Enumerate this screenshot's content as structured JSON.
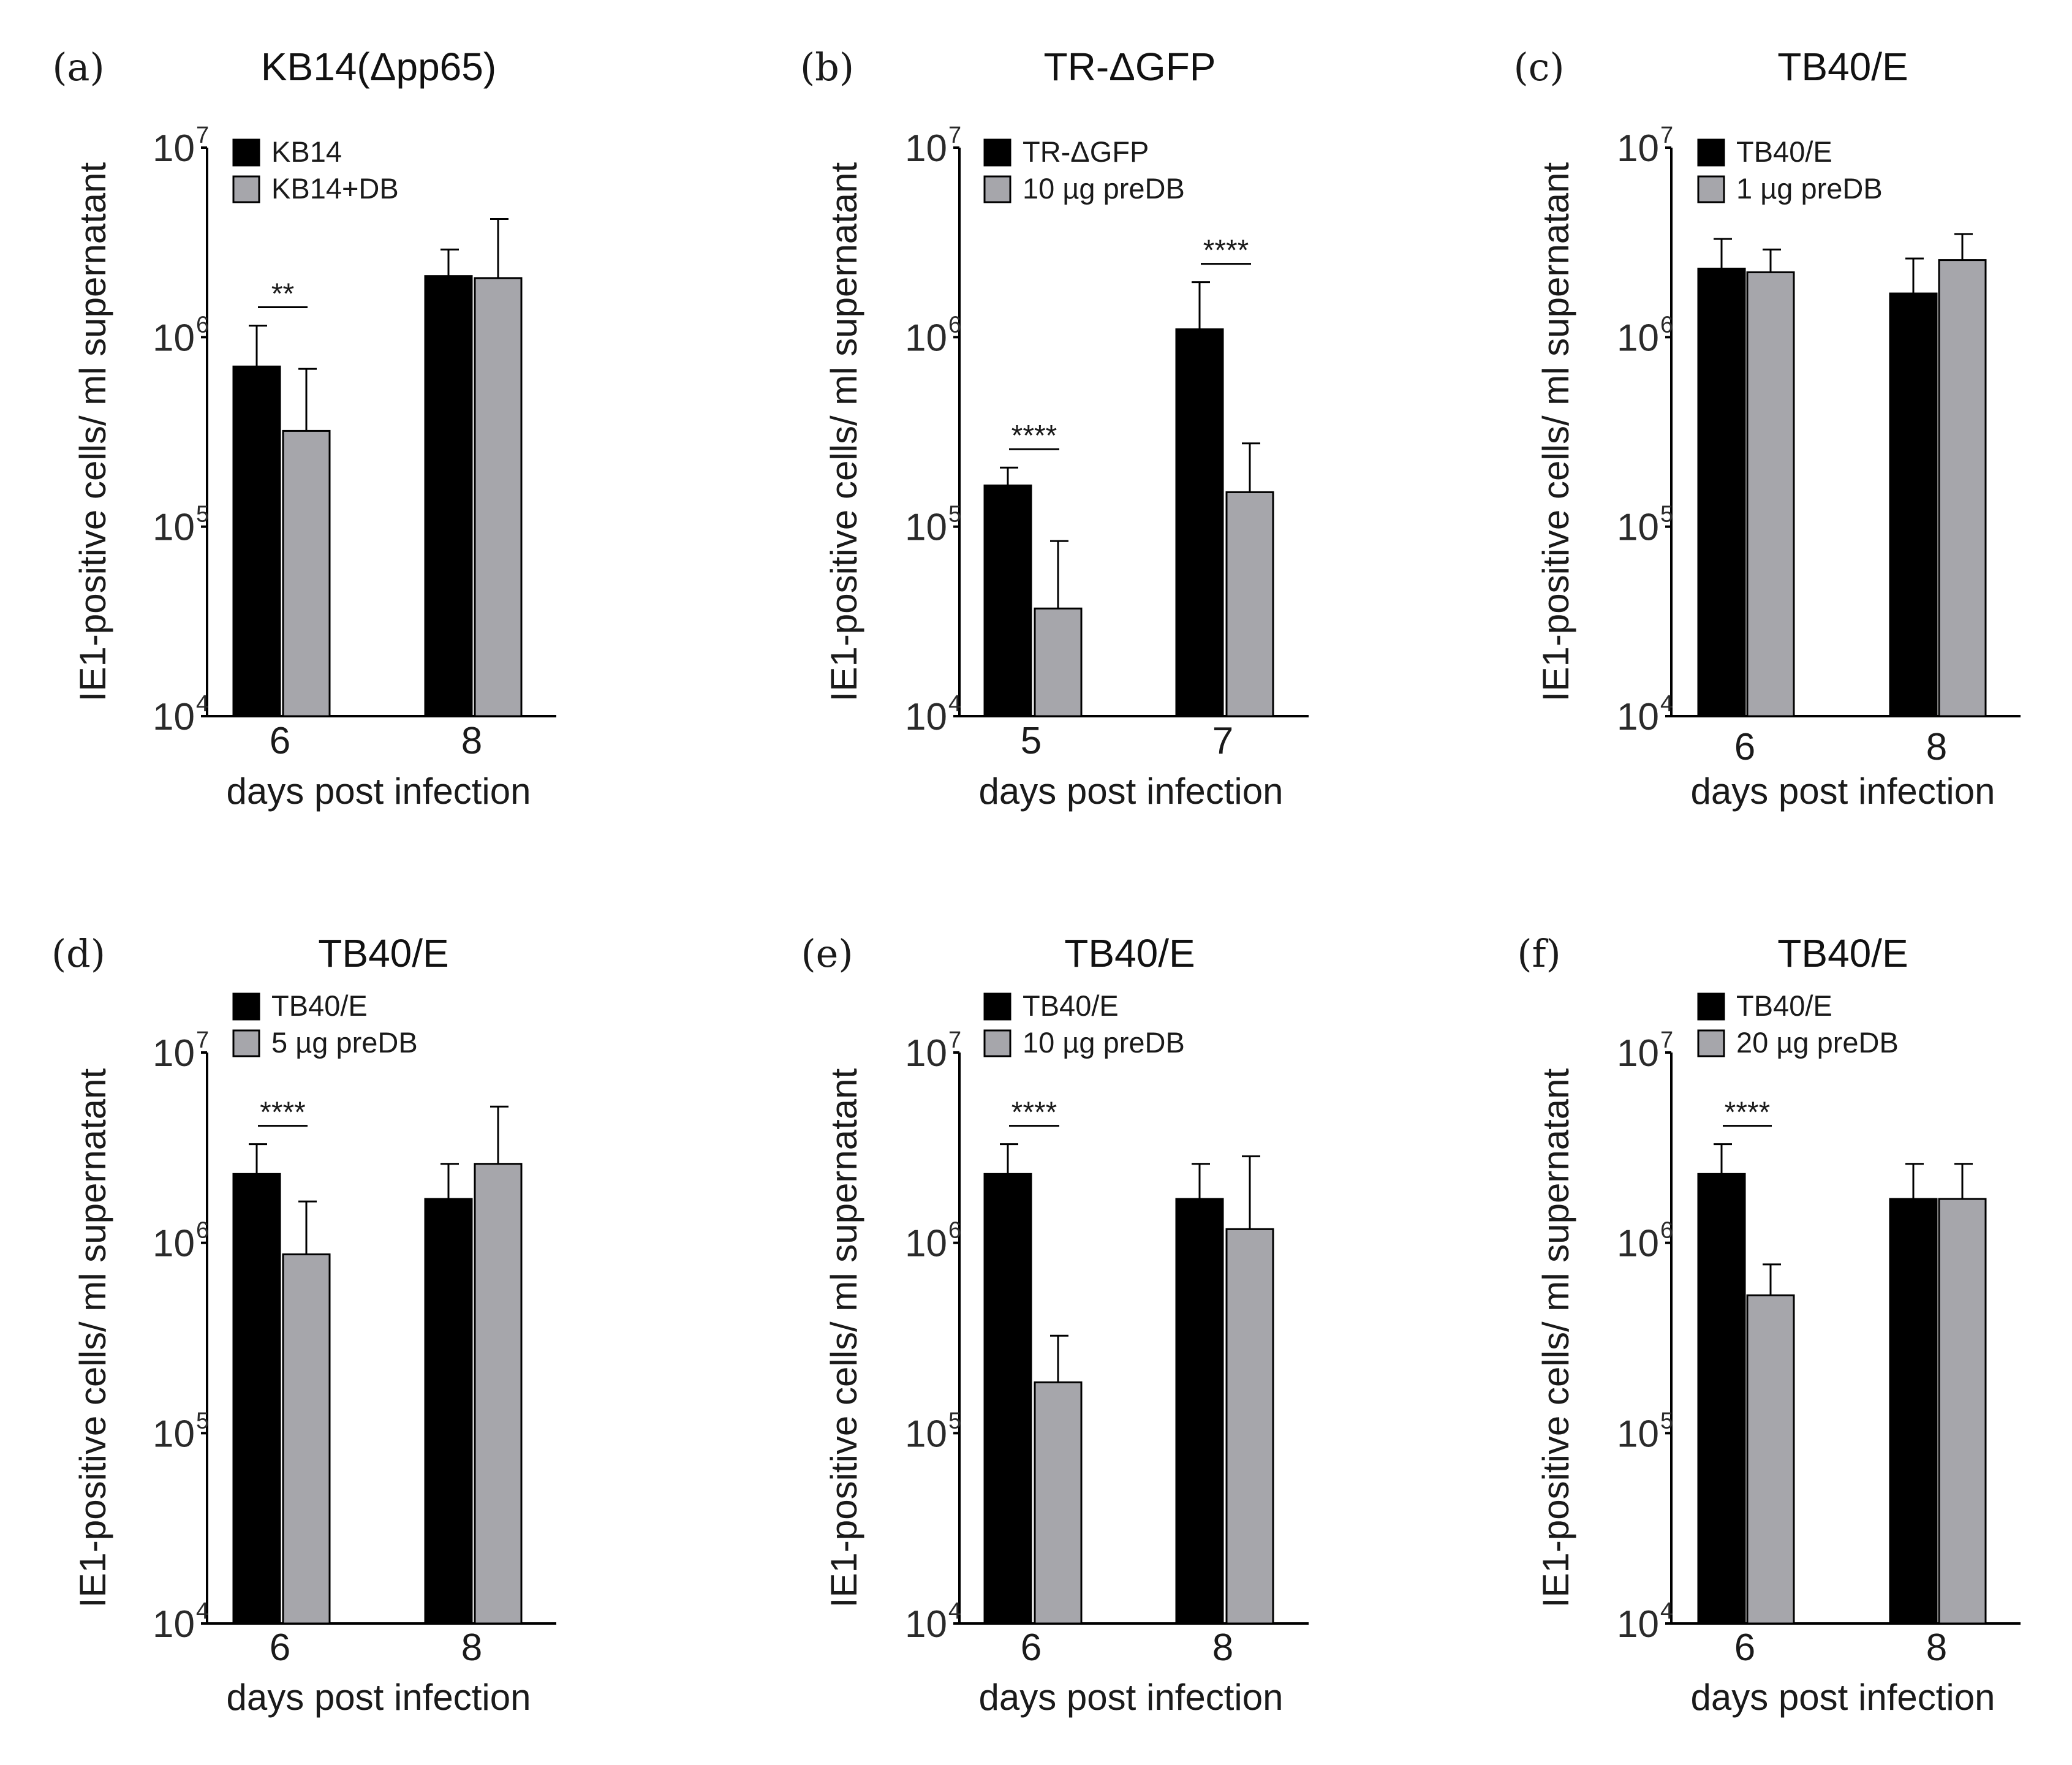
{
  "figure": {
    "x_axis_title": "days post infection"
  },
  "colors": {
    "series1": "#000000",
    "series2": "#a6a6ab",
    "axis": "#000000"
  },
  "chart_data": [
    {
      "type": "bar",
      "panel": "(a)",
      "title": "KB14(Δpp65)",
      "xlabel": "days post infection",
      "ylabel": "IE1-positive cells/ ml supernatant",
      "yscale": "log",
      "ylim": [
        10000,
        10000000
      ],
      "yticks": [
        {
          "base": "10",
          "exp": "4"
        },
        {
          "base": "10",
          "exp": "5"
        },
        {
          "base": "10",
          "exp": "6"
        },
        {
          "base": "10",
          "exp": "7"
        }
      ],
      "categories": [
        "6",
        "8"
      ],
      "series": [
        {
          "name": "KB14",
          "values": [
            700000,
            2100000
          ],
          "error_upper": [
            1150000,
            2900000
          ]
        },
        {
          "name": "KB14+DB",
          "values": [
            320000,
            2050000
          ],
          "error_upper": [
            680000,
            4200000
          ]
        }
      ],
      "significance": [
        {
          "category": "6",
          "label": "**"
        }
      ]
    },
    {
      "type": "bar",
      "panel": "(b)",
      "title": "TR-ΔGFP",
      "xlabel": "days post infection",
      "ylabel": "IE1-positive cells/ ml supernatant",
      "yscale": "log",
      "ylim": [
        10000,
        10000000
      ],
      "yticks": [
        {
          "base": "10",
          "exp": "4"
        },
        {
          "base": "10",
          "exp": "5"
        },
        {
          "base": "10",
          "exp": "6"
        },
        {
          "base": "10",
          "exp": "7"
        }
      ],
      "categories": [
        "5",
        "7"
      ],
      "series": [
        {
          "name": "TR-ΔGFP",
          "values": [
            165000,
            1100000
          ],
          "error_upper": [
            205000,
            1950000
          ]
        },
        {
          "name": "10 µg preDB",
          "values": [
            37000,
            152000
          ],
          "error_upper": [
            84000,
            275000
          ]
        }
      ],
      "significance": [
        {
          "category": "5",
          "label": "****"
        },
        {
          "category": "7",
          "label": "****"
        }
      ]
    },
    {
      "type": "bar",
      "panel": "(c)",
      "title": "TB40/E",
      "xlabel": "days post infection",
      "ylabel": "IE1-positive cells/ ml supernatant",
      "yscale": "log",
      "ylim": [
        10000,
        10000000
      ],
      "yticks": [
        {
          "base": "10",
          "exp": "4"
        },
        {
          "base": "10",
          "exp": "5"
        },
        {
          "base": "10",
          "exp": "6"
        },
        {
          "base": "10",
          "exp": "7"
        }
      ],
      "categories": [
        "6",
        "8"
      ],
      "series": [
        {
          "name": "TB40/E",
          "values": [
            2300000,
            1700000
          ],
          "error_upper": [
            3300000,
            2600000
          ]
        },
        {
          "name": "1 µg preDB",
          "values": [
            2200000,
            2550000
          ],
          "error_upper": [
            2900000,
            3500000
          ]
        }
      ],
      "significance": []
    },
    {
      "type": "bar",
      "panel": "(d)",
      "title": "TB40/E",
      "xlabel": "days post infection",
      "ylabel": "IE1-positive cells/ ml supernatant",
      "yscale": "log",
      "ylim": [
        10000,
        10000000
      ],
      "yticks": [
        {
          "base": "10",
          "exp": "4"
        },
        {
          "base": "10",
          "exp": "5"
        },
        {
          "base": "10",
          "exp": "6"
        },
        {
          "base": "10",
          "exp": "7"
        }
      ],
      "categories": [
        "6",
        "8"
      ],
      "series": [
        {
          "name": "TB40/E",
          "values": [
            2300000,
            1700000
          ],
          "error_upper": [
            3300000,
            2600000
          ]
        },
        {
          "name": "5 µg preDB",
          "values": [
            870000,
            2600000
          ],
          "error_upper": [
            1650000,
            5200000
          ]
        }
      ],
      "significance": [
        {
          "category": "6",
          "label": "****"
        }
      ]
    },
    {
      "type": "bar",
      "panel": "(e)",
      "title": "TB40/E",
      "xlabel": "days post infection",
      "ylabel": "IE1-positive cells/ ml supernatant",
      "yscale": "log",
      "ylim": [
        10000,
        10000000
      ],
      "yticks": [
        {
          "base": "10",
          "exp": "4"
        },
        {
          "base": "10",
          "exp": "5"
        },
        {
          "base": "10",
          "exp": "6"
        },
        {
          "base": "10",
          "exp": "7"
        }
      ],
      "categories": [
        "6",
        "8"
      ],
      "series": [
        {
          "name": "TB40/E",
          "values": [
            2300000,
            1700000
          ],
          "error_upper": [
            3300000,
            2600000
          ]
        },
        {
          "name": "10 µg preDB",
          "values": [
            185000,
            1180000
          ],
          "error_upper": [
            325000,
            2850000
          ]
        }
      ],
      "significance": [
        {
          "category": "6",
          "label": "****"
        }
      ]
    },
    {
      "type": "bar",
      "panel": "(f)",
      "title": "TB40/E",
      "xlabel": "days post infection",
      "ylabel": "IE1-positive cells/ ml supernatant",
      "yscale": "log",
      "ylim": [
        10000,
        10000000
      ],
      "yticks": [
        {
          "base": "10",
          "exp": "4"
        },
        {
          "base": "10",
          "exp": "5"
        },
        {
          "base": "10",
          "exp": "6"
        },
        {
          "base": "10",
          "exp": "7"
        }
      ],
      "categories": [
        "6",
        "8"
      ],
      "series": [
        {
          "name": "TB40/E",
          "values": [
            2300000,
            1700000
          ],
          "error_upper": [
            3300000,
            2600000
          ]
        },
        {
          "name": "20 µg preDB",
          "values": [
            530000,
            1700000
          ],
          "error_upper": [
            770000,
            2600000
          ]
        }
      ],
      "significance": [
        {
          "category": "6",
          "label": "****"
        }
      ]
    }
  ]
}
